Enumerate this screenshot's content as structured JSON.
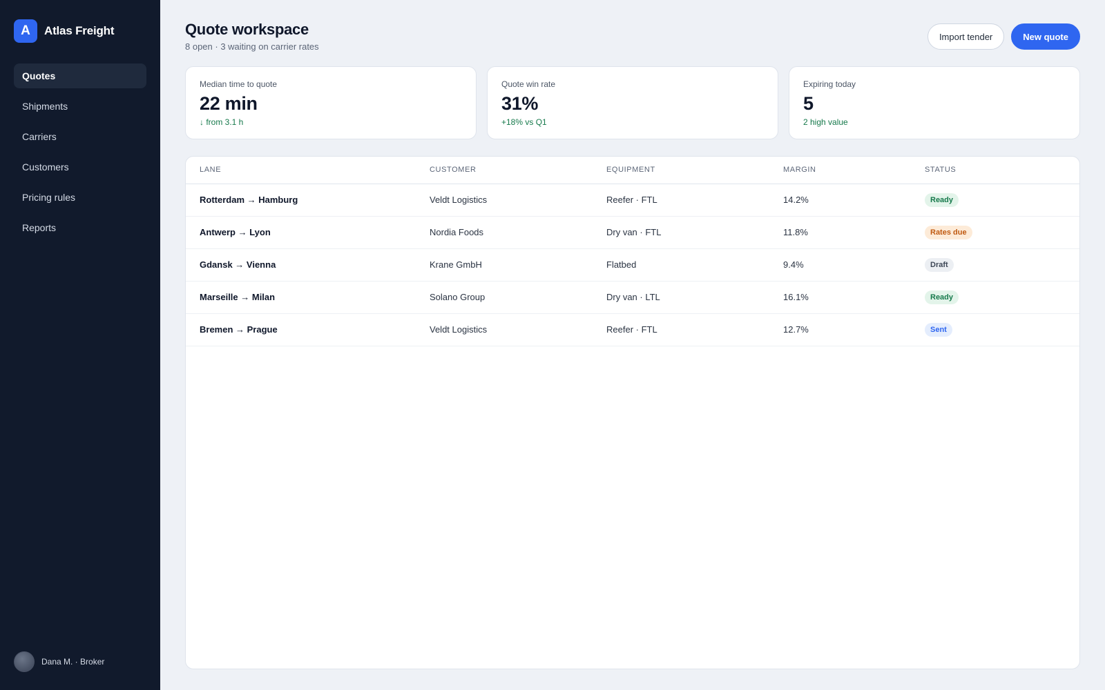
{
  "brand": {
    "logo_letter": "A",
    "name": "Atlas Freight",
    "accent": "#2f66f0"
  },
  "sidebar": {
    "items": [
      {
        "label": "Quotes",
        "active": true
      },
      {
        "label": "Shipments",
        "active": false
      },
      {
        "label": "Carriers",
        "active": false
      },
      {
        "label": "Customers",
        "active": false
      },
      {
        "label": "Pricing rules",
        "active": false
      },
      {
        "label": "Reports",
        "active": false
      }
    ],
    "user": {
      "label": "Dana M. · Broker"
    }
  },
  "header": {
    "title": "Quote workspace",
    "subtitle": "8 open · 3 waiting on carrier rates",
    "import_label": "Import tender",
    "new_label": "New quote"
  },
  "stats": [
    {
      "label": "Median time to quote",
      "value": "22 min",
      "delta": "↓ from 3.1 h"
    },
    {
      "label": "Quote win rate",
      "value": "31%",
      "delta": "+18% vs Q1"
    },
    {
      "label": "Expiring today",
      "value": "5",
      "delta": "2 high value"
    }
  ],
  "table": {
    "columns": [
      "LANE",
      "CUSTOMER",
      "EQUIPMENT",
      "MARGIN",
      "STATUS"
    ],
    "rows": [
      {
        "lane": "Rotterdam → Hamburg",
        "customer": "Veldt Logistics",
        "equipment": "Reefer · FTL",
        "margin": "14.2%",
        "status": "Ready"
      },
      {
        "lane": "Antwerp → Lyon",
        "customer": "Nordia Foods",
        "equipment": "Dry van · FTL",
        "margin": "11.8%",
        "status": "Rates due"
      },
      {
        "lane": "Gdansk → Vienna",
        "customer": "Krane GmbH",
        "equipment": "Flatbed",
        "margin": "9.4%",
        "status": "Draft"
      },
      {
        "lane": "Marseille → Milan",
        "customer": "Solano Group",
        "equipment": "Dry van · LTL",
        "margin": "16.1%",
        "status": "Ready"
      },
      {
        "lane": "Bremen → Prague",
        "customer": "Veldt Logistics",
        "equipment": "Reefer · FTL",
        "margin": "12.7%",
        "status": "Sent"
      }
    ],
    "status_colors": {
      "Ready": {
        "bg": "#e3f4ea",
        "fg": "#16794b"
      },
      "Rates due": {
        "bg": "#fdebd8",
        "fg": "#c05a11"
      },
      "Draft": {
        "bg": "#eceff3",
        "fg": "#3d4756"
      },
      "Sent": {
        "bg": "#e4edfd",
        "fg": "#2f66f0"
      }
    }
  }
}
